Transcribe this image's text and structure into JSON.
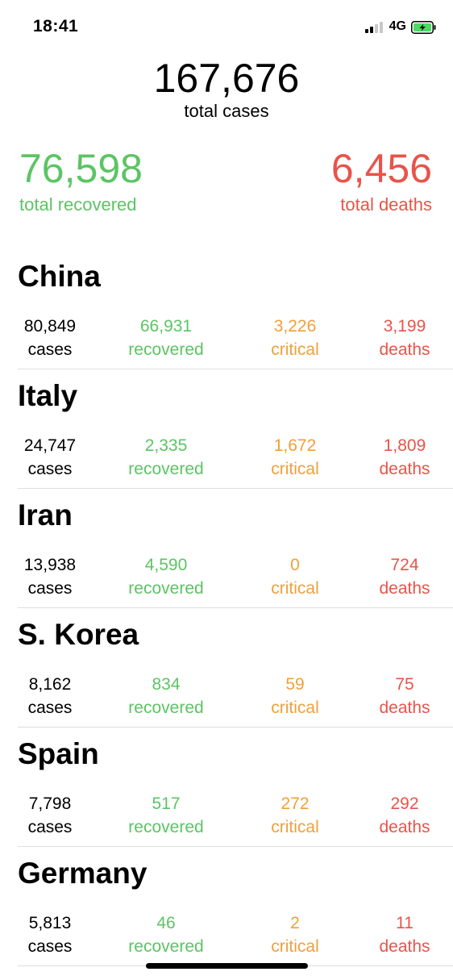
{
  "status_bar": {
    "time": "18:41",
    "network": "4G"
  },
  "totals": {
    "cases": "167,676",
    "cases_label": "total cases",
    "recovered": "76,598",
    "recovered_label": "total recovered",
    "deaths": "6,456",
    "deaths_label": "total deaths"
  },
  "colors": {
    "green": "#5cc464",
    "orange": "#f0a03a",
    "red": "#e8544a"
  },
  "countries": [
    {
      "name": "China",
      "cases": "80,849",
      "recovered": "66,931",
      "critical": "3,226",
      "deaths": "3,199"
    },
    {
      "name": "Italy",
      "cases": "24,747",
      "recovered": "2,335",
      "critical": "1,672",
      "deaths": "1,809"
    },
    {
      "name": "Iran",
      "cases": "13,938",
      "recovered": "4,590",
      "critical": "0",
      "deaths": "724"
    },
    {
      "name": "S. Korea",
      "cases": "8,162",
      "recovered": "834",
      "critical": "59",
      "deaths": "75"
    },
    {
      "name": "Spain",
      "cases": "7,798",
      "recovered": "517",
      "critical": "272",
      "deaths": "292"
    },
    {
      "name": "Germany",
      "cases": "5,813",
      "recovered": "46",
      "critical": "2",
      "deaths": "11"
    }
  ],
  "labels": {
    "cases": "cases",
    "recovered": "recovered",
    "critical": "critical",
    "deaths": "deaths"
  }
}
